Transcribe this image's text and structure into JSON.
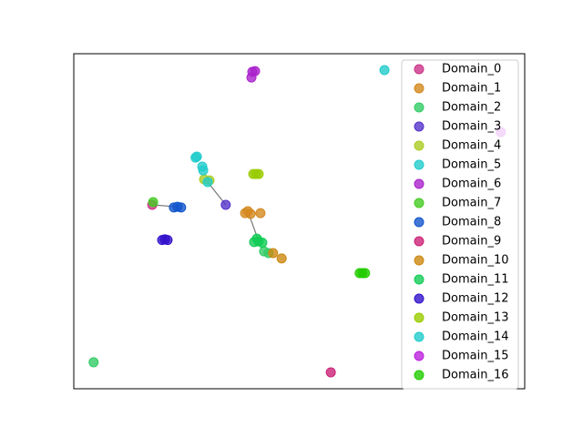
{
  "chart_data": {
    "type": "scatter",
    "xlim": [
      0,
      1
    ],
    "ylim": [
      0,
      1
    ],
    "legend": "upper right",
    "edges": [
      {
        "x": [
          0.174,
          0.23
        ],
        "y": [
          0.549,
          0.543
        ]
      },
      {
        "x": [
          0.297,
          0.337
        ],
        "y": [
          0.617,
          0.549
        ]
      },
      {
        "x": [
          0.386,
          0.41
        ],
        "y": [
          0.53,
          0.44
        ]
      }
    ],
    "series": [
      {
        "name": "Domain_0",
        "color": "#cc3388",
        "x": [
          0.174
        ],
        "y": [
          0.549
        ]
      },
      {
        "name": "Domain_1",
        "color": "#d4881e",
        "x": [
          0.386,
          0.38,
          0.392,
          0.414
        ],
        "y": [
          0.53,
          0.524,
          0.522,
          0.524
        ]
      },
      {
        "name": "Domain_2",
        "color": "#33cc66",
        "x": [
          0.044,
          0.422,
          0.432
        ],
        "y": [
          0.079,
          0.41,
          0.405
        ]
      },
      {
        "name": "Domain_3",
        "color": "#5533cc",
        "x": [
          0.337
        ],
        "y": [
          0.549
        ]
      },
      {
        "name": "Domain_4",
        "color": "#aacc22",
        "x": [
          0.289,
          0.301
        ],
        "y": [
          0.625,
          0.622
        ]
      },
      {
        "name": "Domain_5",
        "color": "#22cccc",
        "x": [
          0.273,
          0.27,
          0.285,
          0.287,
          0.297
        ],
        "y": [
          0.693,
          0.69,
          0.663,
          0.652,
          0.617
        ]
      },
      {
        "name": "Domain_6",
        "color": "#aa22cc",
        "x": [
          0.396,
          0.394,
          0.402
        ],
        "y": [
          0.946,
          0.929,
          0.948
        ]
      },
      {
        "name": "Domain_7",
        "color": "#44cc22",
        "x": [
          0.176
        ],
        "y": [
          0.557
        ]
      },
      {
        "name": "Domain_8",
        "color": "#1155cc",
        "x": [
          0.23,
          0.222,
          0.238
        ],
        "y": [
          0.543,
          0.541,
          0.541
        ]
      },
      {
        "name": "Domain_9",
        "color": "#cc2277",
        "x": [
          0.57
        ],
        "y": [
          0.049
        ]
      },
      {
        "name": "Domain_10",
        "color": "#cc8811",
        "x": [
          0.442,
          0.461
        ],
        "y": [
          0.405,
          0.389
        ]
      },
      {
        "name": "Domain_11",
        "color": "#11cc55",
        "x": [
          0.41,
          0.406,
          0.4,
          0.418
        ],
        "y": [
          0.44,
          0.448,
          0.438,
          0.436
        ]
      },
      {
        "name": "Domain_12",
        "color": "#3311cc",
        "x": [
          0.202,
          0.196,
          0.208
        ],
        "y": [
          0.446,
          0.444,
          0.444
        ]
      },
      {
        "name": "Domain_13",
        "color": "#99cc00",
        "x": [
          0.404,
          0.398,
          0.41
        ],
        "y": [
          0.641,
          0.641,
          0.641
        ]
      },
      {
        "name": "Domain_14",
        "color": "#22cccc",
        "x": [
          0.689
        ],
        "y": [
          0.951
        ]
      },
      {
        "name": "Domain_15",
        "color": "#bb22dd",
        "x": [
          0.947
        ],
        "y": [
          0.766
        ]
      },
      {
        "name": "Domain_16",
        "color": "#22cc00",
        "x": [
          0.64,
          0.634,
          0.646
        ],
        "y": [
          0.345,
          0.345,
          0.345
        ]
      }
    ]
  }
}
